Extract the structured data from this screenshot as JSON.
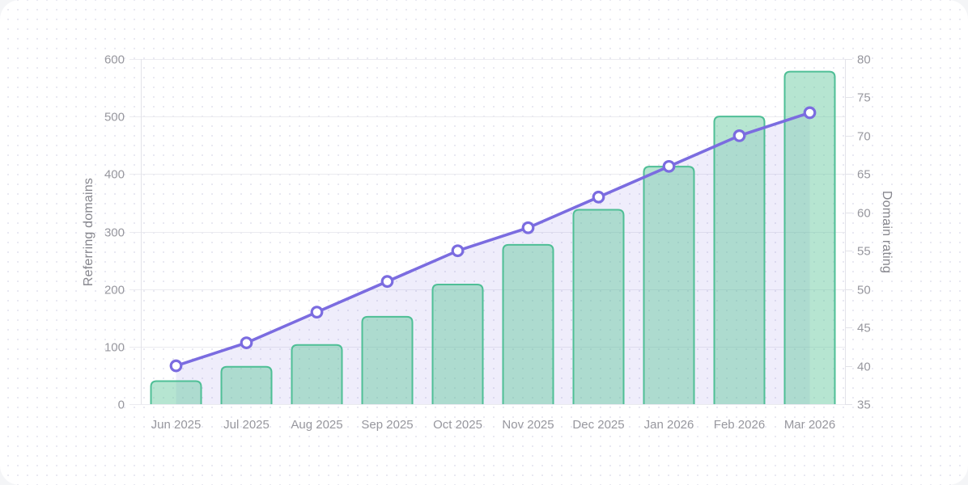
{
  "card": {
    "background": "#ffffff",
    "dot_pattern_color": "#e9e9f2"
  },
  "chart_data": {
    "type": "combo-bar-line",
    "title": "",
    "categories": [
      "Jun 2025",
      "Jul 2025",
      "Aug 2025",
      "Sep 2025",
      "Oct 2025",
      "Nov 2025",
      "Dec 2025",
      "Jan 2026",
      "Feb 2026",
      "Mar 2026"
    ],
    "series": [
      {
        "name": "Referring domains",
        "type": "bar",
        "axis": "left",
        "values": [
          40,
          65,
          103,
          152,
          208,
          277,
          338,
          413,
          500,
          578
        ],
        "bar_fill": "rgba(93, 198, 153, 0.45)",
        "bar_stroke": "#4fbf96"
      },
      {
        "name": "Domain rating",
        "type": "line-area",
        "axis": "right",
        "values": [
          40,
          43,
          47,
          51,
          55,
          58,
          62,
          66,
          70,
          73
        ],
        "line_color": "#7b6ce0",
        "area_fill": "rgba(124, 108, 224, 0.12)",
        "marker_fill": "#ffffff"
      }
    ],
    "left_axis": {
      "label": "Referring domains",
      "min": 0,
      "max": 600,
      "ticks": [
        0,
        100,
        200,
        300,
        400,
        500,
        600
      ]
    },
    "right_axis": {
      "label": "Domain rating",
      "min": 35,
      "max": 80,
      "ticks": [
        35,
        40,
        45,
        50,
        55,
        60,
        65,
        70,
        75,
        80
      ]
    },
    "grid": "horizontal-only",
    "legend": "none",
    "colors": {
      "grid_line": "#ebebf0",
      "axis_line": "#e3e3e9",
      "tick_label": "#97979e",
      "axis_title": "#86868d"
    }
  }
}
